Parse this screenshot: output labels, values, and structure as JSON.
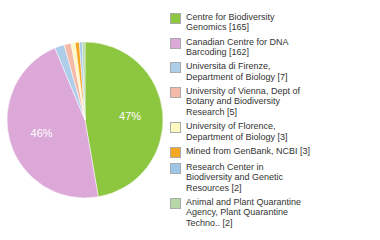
{
  "chart_data": {
    "type": "pie",
    "categories": [
      "Centre for Biodiversity\nGenomics [165]",
      "Canadian Centre for DNA\nBarcoding [162]",
      "Universita di Firenze,\nDepartment of Biology [7]",
      "University of Vienna, Dept of\nBotany and Biodiversity\nResearch [5]",
      "University of Florence,\nDepartment of Biology [3]",
      "Mined from GenBank, NCBI [3]",
      "Research Center in\nBiodiversity and Genetic\nResources [2]",
      "Animal and Plant Quarantine\nAgency, Plant Quarantine\nTechno.. [2]"
    ],
    "values": [
      165,
      162,
      7,
      5,
      3,
      3,
      2,
      2
    ],
    "colors": [
      "#8dc63f",
      "#dba8d8",
      "#aecde8",
      "#f4b9a7",
      "#fef9c3",
      "#f5a623",
      "#9fc5e8",
      "#b6d7a8"
    ],
    "percentages": [
      {
        "value": 47,
        "label": "47%"
      },
      {
        "value": 46,
        "label": "46%"
      },
      null,
      null,
      null,
      null,
      null,
      null
    ],
    "legend": "right"
  }
}
